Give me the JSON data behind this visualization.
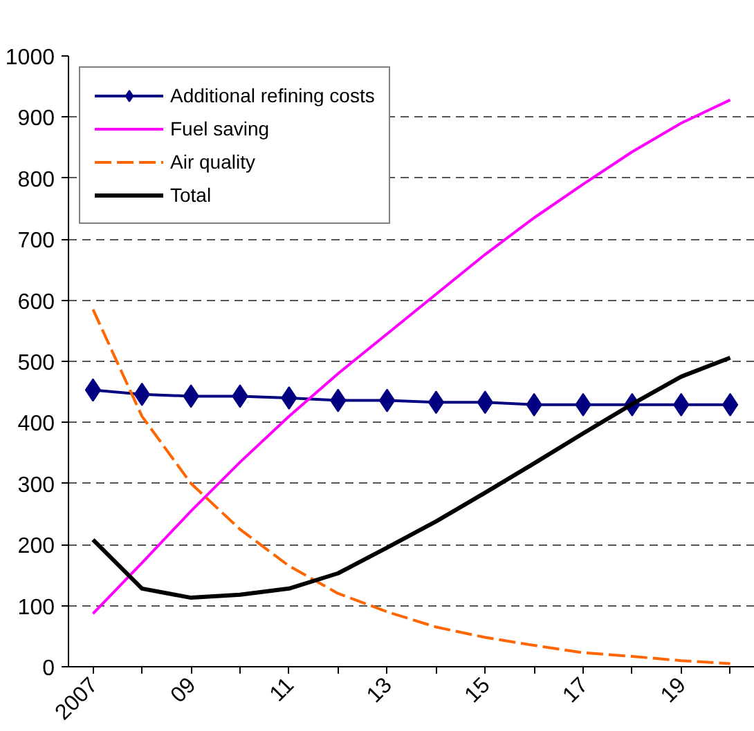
{
  "chart_data": {
    "type": "line",
    "categories": [
      "2007",
      null,
      "09",
      null,
      "11",
      null,
      "13",
      null,
      "15",
      null,
      "17",
      null,
      "19",
      null
    ],
    "series": [
      {
        "name": "Additional refining costs",
        "color": "#000080",
        "marker": "diamond",
        "line_style": "solid",
        "values": [
          453,
          446,
          443,
          443,
          440,
          436,
          436,
          433,
          433,
          429,
          429,
          429,
          429,
          429
        ]
      },
      {
        "name": "Fuel saving",
        "color": "#ff00ff",
        "marker": "none",
        "line_style": "solid",
        "values": [
          87,
          170,
          255,
          335,
          410,
          480,
          545,
          610,
          675,
          735,
          790,
          843,
          890,
          928
        ]
      },
      {
        "name": "Air quality",
        "color": "#ff6600",
        "marker": "none",
        "line_style": "dashed",
        "values": [
          585,
          410,
          300,
          225,
          165,
          120,
          90,
          65,
          48,
          35,
          23,
          17,
          10,
          5
        ]
      },
      {
        "name": "Total",
        "color": "#000000",
        "marker": "none",
        "line_style": "solid",
        "values": [
          208,
          128,
          113,
          118,
          128,
          153,
          195,
          238,
          285,
          333,
          382,
          430,
          475,
          506
        ]
      }
    ],
    "ylim": [
      0,
      1000
    ],
    "yticks": [
      0,
      100,
      200,
      300,
      400,
      500,
      600,
      700,
      800,
      900,
      1000
    ],
    "grid": "y",
    "legend": "top left"
  }
}
